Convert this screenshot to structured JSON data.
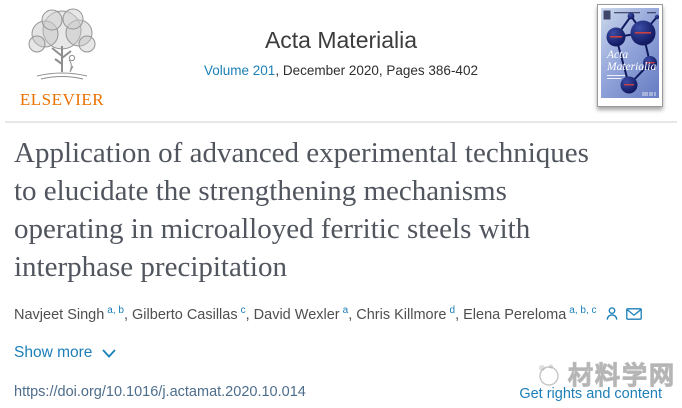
{
  "colors": {
    "link_blue": "#1c7fb8",
    "elsevier_orange": "#eb7100",
    "article_title_gray": "#51555e",
    "doi_steel_blue": "#4d6d8c",
    "divider_gray": "#e7e7e7",
    "cover_navy": "#10175c"
  },
  "header": {
    "publisher_name": "ELSEVIER",
    "journal_title": "Acta Materialia",
    "volume_link": "Volume 201",
    "issue_rest": ", December 2020, Pages 386-402",
    "cover": {
      "title_line1": "Acta",
      "title_line2": "Materialia"
    }
  },
  "article": {
    "title_lines": [
      "Application of advanced experimental techniques",
      "to elucidate the strengthening mechanisms",
      "operating in microalloyed ferritic steels with",
      "interphase precipitation"
    ],
    "authors": [
      {
        "name": "Navjeet Singh",
        "sup": "a, b"
      },
      {
        "name": "Gilberto Casillas",
        "sup": "c"
      },
      {
        "name": "David Wexler",
        "sup": "a"
      },
      {
        "name": "Chris Killmore",
        "sup": "d"
      },
      {
        "name": "Elena Pereloma",
        "sup": "a, b, c"
      }
    ],
    "show_more_label": "Show more"
  },
  "footer": {
    "doi": "https://doi.org/10.1016/j.actamat.2020.10.014",
    "rights_label": "Get rights and content"
  },
  "watermark": {
    "text": "材料学网"
  }
}
